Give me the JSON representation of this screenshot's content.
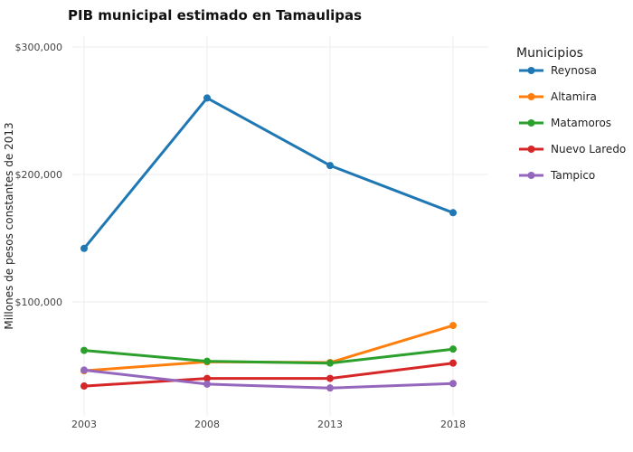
{
  "chart_data": {
    "type": "line",
    "title": "PIB municipal estimado en Tamaulipas",
    "ylabel": "Millones de pesos constantes de 2013",
    "xlabel": "",
    "x": [
      2003,
      2008,
      2013,
      2018
    ],
    "x_tick_labels": [
      "2003",
      "2008",
      "2013",
      "2018"
    ],
    "xlim": [
      2003,
      2018
    ],
    "ylim": [
      15000,
      305000
    ],
    "y_ticks": [
      100000,
      200000,
      300000
    ],
    "y_tick_labels": [
      "$100,000",
      "$200,000",
      "$300,000"
    ],
    "grid": true,
    "legend_title": "Municipios",
    "legend_position": "right",
    "series": [
      {
        "name": "Reynosa",
        "color": "#1f77b4",
        "values": [
          142000,
          260000,
          207000,
          170000
        ]
      },
      {
        "name": "Altamira",
        "color": "#ff7f0e",
        "values": [
          46000,
          53000,
          52500,
          81500
        ]
      },
      {
        "name": "Matamoros",
        "color": "#2ca02c",
        "values": [
          62000,
          53500,
          52000,
          63000
        ]
      },
      {
        "name": "Nuevo Laredo",
        "color": "#d62728",
        "values": [
          34000,
          40000,
          40000,
          52000
        ]
      },
      {
        "name": "Tampico",
        "color": "#9467bd",
        "values": [
          46500,
          35500,
          32500,
          36000
        ]
      }
    ]
  }
}
